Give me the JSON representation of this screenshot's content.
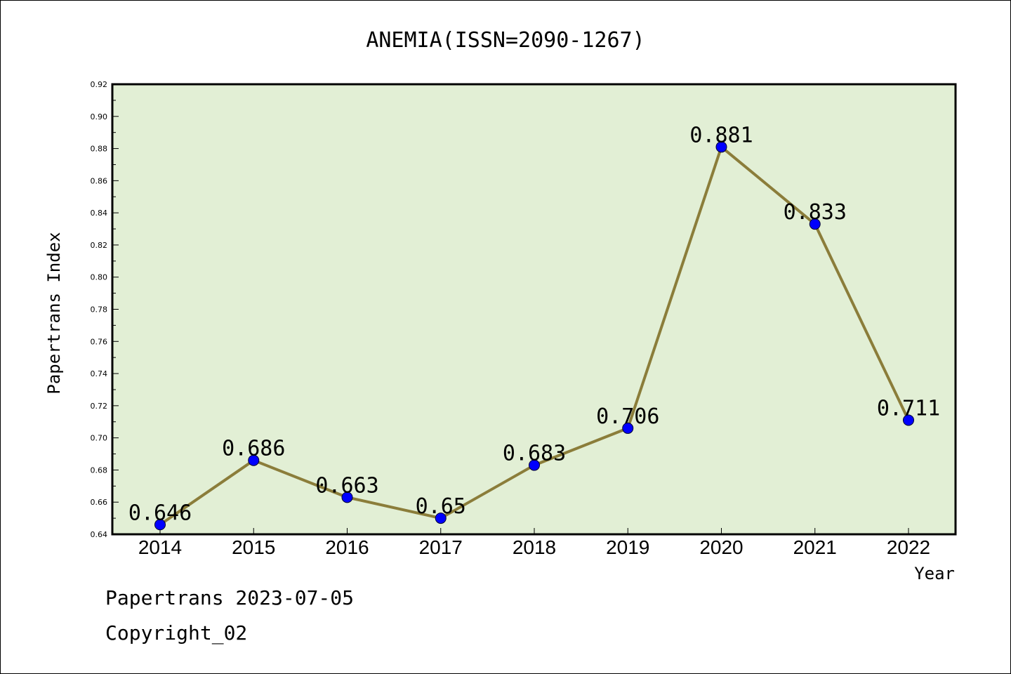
{
  "chart_data": {
    "type": "line",
    "title": "ANEMIA(ISSN=2090-1267)",
    "xlabel": "Year",
    "ylabel": "Papertrans Index",
    "categories": [
      "2014",
      "2015",
      "2016",
      "2017",
      "2018",
      "2019",
      "2020",
      "2021",
      "2022"
    ],
    "values": [
      0.646,
      0.686,
      0.663,
      0.65,
      0.683,
      0.706,
      0.881,
      0.833,
      0.711
    ],
    "value_labels": [
      "0.646",
      "0.686",
      "0.663",
      "0.65",
      "0.683",
      "0.706",
      "0.881",
      "0.833",
      "0.711"
    ],
    "ylim": [
      0.64,
      0.92
    ],
    "yticks": [
      "0.64",
      "0.66",
      "0.68",
      "0.70",
      "0.72",
      "0.74",
      "0.76",
      "0.78",
      "0.80",
      "0.82",
      "0.84",
      "0.86",
      "0.88",
      "0.90",
      "0.92"
    ],
    "grid": false,
    "colors": {
      "line": "#8b7d3a",
      "marker": "#0000ff",
      "plot_background": "#e2efd5"
    }
  },
  "footer": {
    "line1": "Papertrans 2023-07-05",
    "line2": "Copyright_02"
  }
}
